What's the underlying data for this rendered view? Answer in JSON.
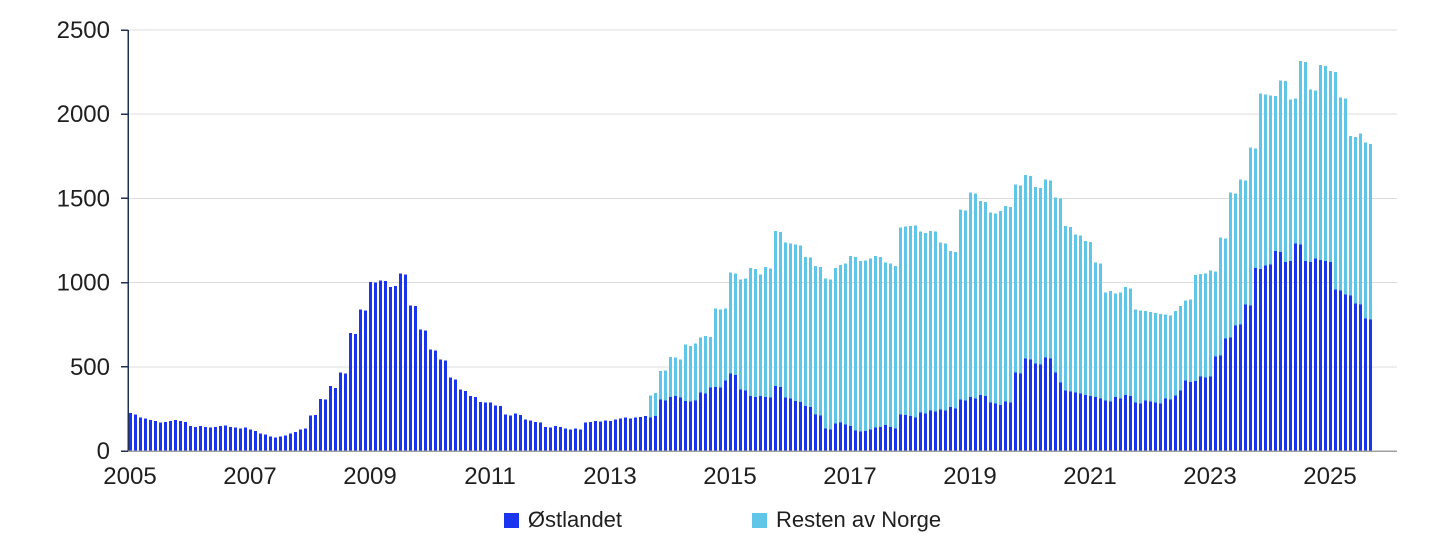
{
  "chart_data": {
    "type": "bar",
    "stacked": true,
    "title": "",
    "xlabel": "",
    "ylabel": "",
    "x_start": "2005-01",
    "x_end": "2025-09",
    "months_per_bar": 1,
    "x_tick_labels": [
      "2005",
      "2007",
      "2009",
      "2011",
      "2013",
      "2015",
      "2017",
      "2019",
      "2021",
      "2023",
      "2025"
    ],
    "y_ticks": [
      0,
      500,
      1000,
      1500,
      2000,
      2500
    ],
    "ylim": [
      0,
      2500
    ],
    "grid": "horizontal",
    "legend_position": "bottom-center",
    "colors": {
      "ostlandet": "#1b34ee",
      "resten_av_norge": "#5fc6e8",
      "y_axis": "#1f3050",
      "x_axis": "#a0a0a0",
      "gridline": "#dcdcdc",
      "text": "#1f1f1f"
    },
    "series": [
      {
        "name": "Østlandet",
        "color": "#1b34ee",
        "values": [
          225,
          218,
          198,
          192,
          184,
          178,
          168,
          172,
          178,
          184,
          178,
          172,
          148,
          144,
          148,
          144,
          139,
          144,
          148,
          152,
          144,
          139,
          133,
          139,
          129,
          119,
          105,
          99,
          85,
          79,
          85,
          93,
          105,
          113,
          129,
          133,
          210,
          215,
          310,
          305,
          385,
          375,
          465,
          460,
          700,
          695,
          840,
          835,
          1005,
          1000,
          1013,
          1009,
          975,
          980,
          1053,
          1049,
          865,
          861,
          722,
          716,
          604,
          598,
          544,
          538,
          435,
          425,
          366,
          356,
          327,
          321,
          291,
          287,
          287,
          271,
          267,
          218,
          212,
          222,
          214,
          188,
          182,
          172,
          168,
          144,
          139,
          148,
          142,
          133,
          129,
          135,
          129,
          168,
          172,
          178,
          174,
          182,
          178,
          188,
          194,
          198,
          192,
          198,
          202,
          208,
          198,
          208,
          307,
          301,
          321,
          327,
          317,
          297,
          293,
          301,
          346,
          340,
          376,
          380,
          376,
          420,
          459,
          451,
          366,
          360,
          327,
          321,
          327,
          321,
          317,
          386,
          380,
          317,
          311,
          297,
          291,
          267,
          261,
          218,
          212,
          135,
          129,
          162,
          168,
          158,
          148,
          123,
          115,
          119,
          129,
          139,
          142,
          154,
          142,
          135,
          218,
          214,
          208,
          198,
          228,
          222,
          241,
          234,
          247,
          241,
          261,
          253,
          307,
          301,
          321,
          313,
          332,
          327,
          287,
          281,
          273,
          293,
          287,
          465,
          459,
          550,
          544,
          519,
          515,
          554,
          550,
          465,
          406,
          360,
          352,
          346,
          340,
          332,
          327,
          321,
          313,
          301,
          293,
          321,
          313,
          332,
          327,
          287,
          281,
          301,
          293,
          287,
          281,
          313,
          307,
          330,
          360,
          420,
          410,
          416,
          441,
          435,
          441,
          560,
          568,
          667,
          673,
          746,
          752,
          871,
          865,
          1088,
          1082,
          1102,
          1108,
          1187,
          1181,
          1122,
          1128,
          1233,
          1227,
          1128,
          1122,
          1142,
          1134,
          1128,
          1122,
          960,
          954,
          930,
          924,
          875,
          871,
          786,
          782
        ]
      },
      {
        "name": "Resten av Norge",
        "color": "#5fc6e8",
        "values": [
          0,
          0,
          0,
          0,
          0,
          0,
          0,
          0,
          0,
          0,
          0,
          0,
          0,
          0,
          0,
          0,
          0,
          0,
          0,
          0,
          0,
          0,
          0,
          0,
          0,
          0,
          0,
          0,
          0,
          0,
          0,
          0,
          0,
          0,
          0,
          0,
          0,
          0,
          0,
          0,
          0,
          0,
          0,
          0,
          0,
          0,
          0,
          0,
          0,
          0,
          0,
          0,
          0,
          0,
          0,
          0,
          0,
          0,
          0,
          0,
          0,
          0,
          0,
          0,
          0,
          0,
          0,
          0,
          0,
          0,
          0,
          0,
          0,
          0,
          0,
          0,
          0,
          0,
          0,
          0,
          0,
          0,
          0,
          0,
          0,
          0,
          0,
          0,
          0,
          0,
          0,
          0,
          0,
          0,
          0,
          0,
          0,
          0,
          0,
          0,
          0,
          0,
          0,
          0,
          132,
          137,
          168,
          178,
          237,
          227,
          227,
          336,
          330,
          336,
          327,
          343,
          301,
          467,
          465,
          425,
          600,
          602,
          653,
          665,
          761,
          761,
          722,
          771,
          767,
          920,
          920,
          920,
          920,
          930,
          930,
          885,
          887,
          880,
          880,
          890,
          890,
          926,
          936,
          954,
          1010,
          1029,
          1013,
          1013,
          1015,
          1019,
          1010,
          964,
          970,
          963,
          1108,
          1118,
          1128,
          1142,
          1074,
          1074,
          1065,
          1068,
          990,
          990,
          926,
          928,
          1128,
          1128,
          1213,
          1215,
          1152,
          1151,
          1128,
          1128,
          1152,
          1162,
          1162,
          1118,
          1118,
          1088,
          1088,
          1048,
          1048,
          1059,
          1057,
          1039,
          1092,
          976,
          978,
          940,
          940,
          915,
          914,
          797,
          799,
          639,
          657,
          613,
          627,
          642,
          639,
          554,
          554,
          530,
          532,
          533,
          534,
          497,
          498,
          500,
          500,
          475,
          490,
          629,
          609,
          620,
          632,
          505,
          699,
          594,
          861,
          782,
          861,
          736,
          936,
          707,
          1040,
          1016,
          1004,
          921,
          1020,
          1075,
          960,
          861,
          1088,
          1181,
          1025,
          999,
          1158,
          1158,
          1134,
          1290,
          1144,
          1164,
          946,
          989,
          1015,
          1047,
          1041
        ]
      }
    ]
  },
  "legend": {
    "items": [
      {
        "label": "Østlandet",
        "color": "#1b34ee"
      },
      {
        "label": "Resten av Norge",
        "color": "#5fc6e8"
      }
    ]
  }
}
